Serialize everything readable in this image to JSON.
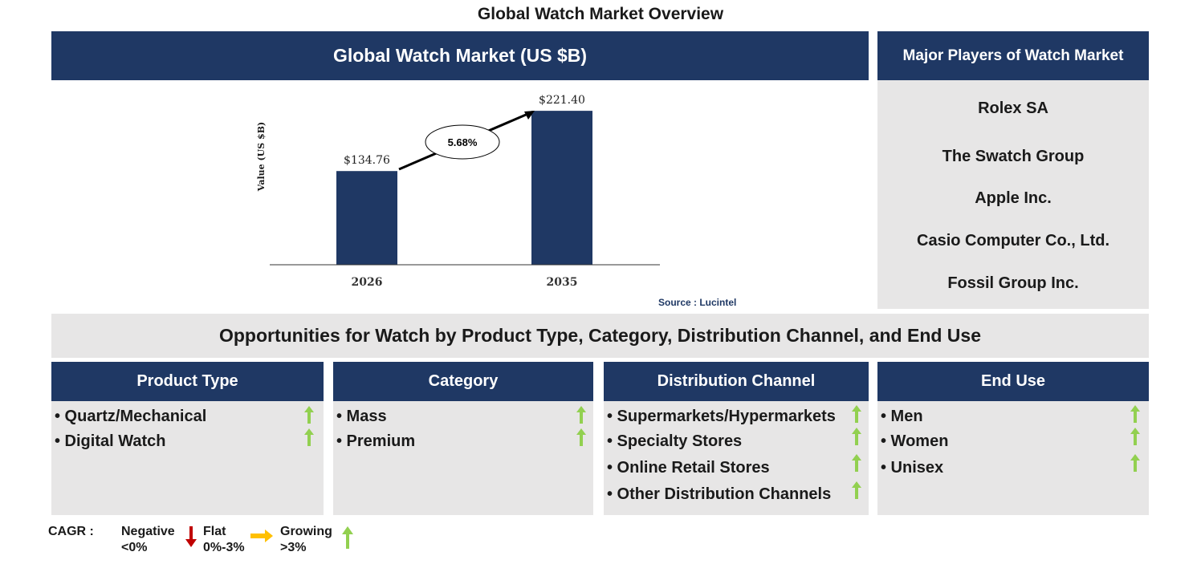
{
  "page_title": "Global Watch Market Overview",
  "chart_panel": {
    "title": "Global Watch Market (US $B)",
    "source": "Source : Lucintel"
  },
  "chart_data": {
    "type": "bar",
    "categories": [
      "2026",
      "2035"
    ],
    "values": [
      134.76,
      221.4
    ],
    "value_labels": [
      "$134.76",
      "$221.40"
    ],
    "ylabel": "Value (US $B)",
    "xlabel": "",
    "ylim": [
      0,
      240
    ],
    "cagr_label": "5.68%",
    "bar_color": "#1f3864",
    "grid": false
  },
  "players": {
    "title": "Major Players of Watch Market",
    "items": [
      "Rolex SA",
      "The Swatch Group",
      "Apple Inc.",
      "Casio Computer Co., Ltd.",
      "Fossil Group Inc."
    ]
  },
  "opportunities_title": "Opportunities for Watch by Product Type, Category, Distribution Channel, and End Use",
  "segments": [
    {
      "title": "Product Type",
      "items": [
        "• Quartz/Mechanical",
        "• Digital Watch"
      ]
    },
    {
      "title": "Category",
      "items": [
        "• Mass",
        "• Premium"
      ]
    },
    {
      "title": "Distribution Channel",
      "items": [
        "• Supermarkets/Hypermarkets",
        "• Specialty Stores",
        "• Online Retail Stores",
        "• Other Distribution Channels"
      ]
    },
    {
      "title": "End Use",
      "items": [
        "• Men",
        "• Women",
        "• Unisex"
      ]
    }
  ],
  "legend": {
    "cagr_label": "CAGR :",
    "negative": "Negative\n<0%",
    "flat": "Flat\n0%-3%",
    "growing": "Growing\n>3%"
  },
  "colors": {
    "navy": "#1f3864",
    "grey_panel": "#e7e6e6",
    "growing": "#92d050",
    "negative": "#c00000",
    "flat": "#ffc000"
  }
}
